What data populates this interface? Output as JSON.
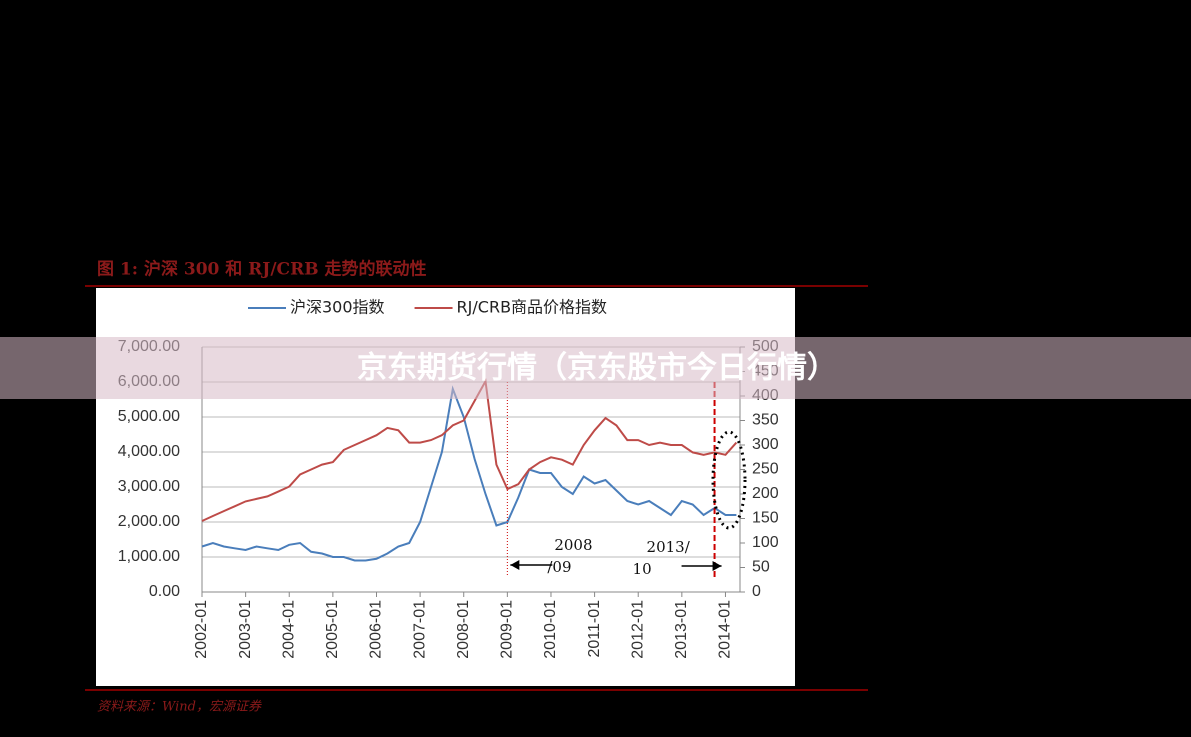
{
  "figure_title": "图 1:  沪深 300 和 RJ/CRB 走势的联动性",
  "source": "资料来源：Wind，宏源证券",
  "banner": "京东期货行情（京东股市今日行情）",
  "chart_data": {
    "type": "line",
    "x": [
      "2002-01",
      "2002-04",
      "2002-07",
      "2002-10",
      "2003-01",
      "2003-04",
      "2003-07",
      "2003-10",
      "2004-01",
      "2004-04",
      "2004-07",
      "2004-10",
      "2005-01",
      "2005-04",
      "2005-07",
      "2005-10",
      "2006-01",
      "2006-04",
      "2006-07",
      "2006-10",
      "2007-01",
      "2007-04",
      "2007-07",
      "2007-10",
      "2008-01",
      "2008-04",
      "2008-07",
      "2008-10",
      "2009-01",
      "2009-04",
      "2009-07",
      "2009-10",
      "2010-01",
      "2010-04",
      "2010-07",
      "2010-10",
      "2011-01",
      "2011-04",
      "2011-07",
      "2011-10",
      "2012-01",
      "2012-04",
      "2012-07",
      "2012-10",
      "2013-01",
      "2013-04",
      "2013-07",
      "2013-10",
      "2014-01",
      "2014-04"
    ],
    "series": [
      {
        "name": "沪深300指数",
        "color": "#4a7ebb",
        "values": [
          1300,
          1400,
          1300,
          1250,
          1200,
          1300,
          1250,
          1200,
          1350,
          1400,
          1150,
          1100,
          1000,
          1000,
          900,
          900,
          950,
          1100,
          1300,
          1400,
          2000,
          3000,
          4000,
          5800,
          5000,
          3800,
          2800,
          1900,
          2000,
          2700,
          3500,
          3400,
          3400,
          3000,
          2800,
          3300,
          3100,
          3200,
          2900,
          2600,
          2500,
          2600,
          2400,
          2200,
          2600,
          2500,
          2200,
          2400,
          2200,
          2200
        ]
      },
      {
        "name": "RJ/CRB商品价格指数",
        "color": "#be4b48",
        "axis": "y2",
        "values": [
          145,
          155,
          165,
          175,
          185,
          190,
          195,
          205,
          215,
          240,
          250,
          260,
          265,
          290,
          300,
          310,
          320,
          335,
          330,
          305,
          305,
          310,
          320,
          340,
          350,
          390,
          430,
          260,
          210,
          220,
          250,
          265,
          275,
          270,
          260,
          300,
          330,
          355,
          340,
          310,
          310,
          300,
          305,
          300,
          300,
          285,
          280,
          285,
          280,
          305
        ]
      }
    ],
    "xlim": [
      "2002-01",
      "2014-05"
    ],
    "xticks": [
      "2002-01",
      "2003-01",
      "2004-01",
      "2005-01",
      "2006-01",
      "2007-01",
      "2008-01",
      "2009-01",
      "2010-01",
      "2011-01",
      "2012-01",
      "2013-01",
      "2014-01"
    ],
    "ylim": [
      0,
      7000
    ],
    "yticks": [
      {
        "value": 0,
        "label": "0.00"
      },
      {
        "value": 1000,
        "label": "1,000.00"
      },
      {
        "value": 2000,
        "label": "2,000.00"
      },
      {
        "value": 3000,
        "label": "3,000.00"
      },
      {
        "value": 4000,
        "label": "4,000.00"
      },
      {
        "value": 5000,
        "label": "5,000.00"
      },
      {
        "value": 6000,
        "label": "6,000.00"
      },
      {
        "value": 7000,
        "label": "7,000.00"
      }
    ],
    "y2lim": [
      0,
      500
    ],
    "y2ticks": [
      0,
      50,
      100,
      150,
      200,
      250,
      300,
      350,
      400,
      450,
      500
    ],
    "grid": true,
    "legend": "top",
    "annotations": [
      {
        "x": "2009-01",
        "lines": [
          "2008",
          "/09"
        ]
      },
      {
        "x": "2013-10",
        "lines": [
          "2013/",
          "10"
        ]
      }
    ]
  }
}
